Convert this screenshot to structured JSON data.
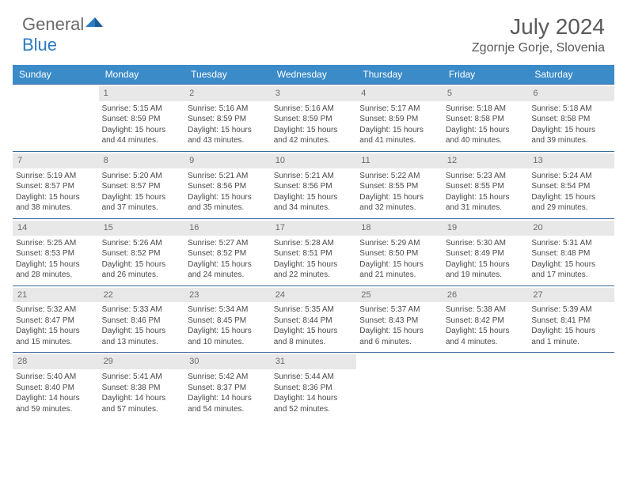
{
  "logo": {
    "text1": "General",
    "text2": "Blue"
  },
  "title": "July 2024",
  "location": "Zgornje Gorje, Slovenia",
  "colors": {
    "header_bg": "#3b8bc9",
    "header_text": "#ffffff",
    "daynum_bg": "#e8e8e8",
    "row_border": "#3b6a9a",
    "text": "#4a4a4a",
    "logo_gray": "#6a6a6a",
    "logo_blue": "#2d7bc0"
  },
  "day_names": [
    "Sunday",
    "Monday",
    "Tuesday",
    "Wednesday",
    "Thursday",
    "Friday",
    "Saturday"
  ],
  "weeks": [
    [
      {
        "n": "",
        "sr": "",
        "ss": "",
        "dl1": "",
        "dl2": ""
      },
      {
        "n": "1",
        "sr": "Sunrise: 5:15 AM",
        "ss": "Sunset: 8:59 PM",
        "dl1": "Daylight: 15 hours",
        "dl2": "and 44 minutes."
      },
      {
        "n": "2",
        "sr": "Sunrise: 5:16 AM",
        "ss": "Sunset: 8:59 PM",
        "dl1": "Daylight: 15 hours",
        "dl2": "and 43 minutes."
      },
      {
        "n": "3",
        "sr": "Sunrise: 5:16 AM",
        "ss": "Sunset: 8:59 PM",
        "dl1": "Daylight: 15 hours",
        "dl2": "and 42 minutes."
      },
      {
        "n": "4",
        "sr": "Sunrise: 5:17 AM",
        "ss": "Sunset: 8:59 PM",
        "dl1": "Daylight: 15 hours",
        "dl2": "and 41 minutes."
      },
      {
        "n": "5",
        "sr": "Sunrise: 5:18 AM",
        "ss": "Sunset: 8:58 PM",
        "dl1": "Daylight: 15 hours",
        "dl2": "and 40 minutes."
      },
      {
        "n": "6",
        "sr": "Sunrise: 5:18 AM",
        "ss": "Sunset: 8:58 PM",
        "dl1": "Daylight: 15 hours",
        "dl2": "and 39 minutes."
      }
    ],
    [
      {
        "n": "7",
        "sr": "Sunrise: 5:19 AM",
        "ss": "Sunset: 8:57 PM",
        "dl1": "Daylight: 15 hours",
        "dl2": "and 38 minutes."
      },
      {
        "n": "8",
        "sr": "Sunrise: 5:20 AM",
        "ss": "Sunset: 8:57 PM",
        "dl1": "Daylight: 15 hours",
        "dl2": "and 37 minutes."
      },
      {
        "n": "9",
        "sr": "Sunrise: 5:21 AM",
        "ss": "Sunset: 8:56 PM",
        "dl1": "Daylight: 15 hours",
        "dl2": "and 35 minutes."
      },
      {
        "n": "10",
        "sr": "Sunrise: 5:21 AM",
        "ss": "Sunset: 8:56 PM",
        "dl1": "Daylight: 15 hours",
        "dl2": "and 34 minutes."
      },
      {
        "n": "11",
        "sr": "Sunrise: 5:22 AM",
        "ss": "Sunset: 8:55 PM",
        "dl1": "Daylight: 15 hours",
        "dl2": "and 32 minutes."
      },
      {
        "n": "12",
        "sr": "Sunrise: 5:23 AM",
        "ss": "Sunset: 8:55 PM",
        "dl1": "Daylight: 15 hours",
        "dl2": "and 31 minutes."
      },
      {
        "n": "13",
        "sr": "Sunrise: 5:24 AM",
        "ss": "Sunset: 8:54 PM",
        "dl1": "Daylight: 15 hours",
        "dl2": "and 29 minutes."
      }
    ],
    [
      {
        "n": "14",
        "sr": "Sunrise: 5:25 AM",
        "ss": "Sunset: 8:53 PM",
        "dl1": "Daylight: 15 hours",
        "dl2": "and 28 minutes."
      },
      {
        "n": "15",
        "sr": "Sunrise: 5:26 AM",
        "ss": "Sunset: 8:52 PM",
        "dl1": "Daylight: 15 hours",
        "dl2": "and 26 minutes."
      },
      {
        "n": "16",
        "sr": "Sunrise: 5:27 AM",
        "ss": "Sunset: 8:52 PM",
        "dl1": "Daylight: 15 hours",
        "dl2": "and 24 minutes."
      },
      {
        "n": "17",
        "sr": "Sunrise: 5:28 AM",
        "ss": "Sunset: 8:51 PM",
        "dl1": "Daylight: 15 hours",
        "dl2": "and 22 minutes."
      },
      {
        "n": "18",
        "sr": "Sunrise: 5:29 AM",
        "ss": "Sunset: 8:50 PM",
        "dl1": "Daylight: 15 hours",
        "dl2": "and 21 minutes."
      },
      {
        "n": "19",
        "sr": "Sunrise: 5:30 AM",
        "ss": "Sunset: 8:49 PM",
        "dl1": "Daylight: 15 hours",
        "dl2": "and 19 minutes."
      },
      {
        "n": "20",
        "sr": "Sunrise: 5:31 AM",
        "ss": "Sunset: 8:48 PM",
        "dl1": "Daylight: 15 hours",
        "dl2": "and 17 minutes."
      }
    ],
    [
      {
        "n": "21",
        "sr": "Sunrise: 5:32 AM",
        "ss": "Sunset: 8:47 PM",
        "dl1": "Daylight: 15 hours",
        "dl2": "and 15 minutes."
      },
      {
        "n": "22",
        "sr": "Sunrise: 5:33 AM",
        "ss": "Sunset: 8:46 PM",
        "dl1": "Daylight: 15 hours",
        "dl2": "and 13 minutes."
      },
      {
        "n": "23",
        "sr": "Sunrise: 5:34 AM",
        "ss": "Sunset: 8:45 PM",
        "dl1": "Daylight: 15 hours",
        "dl2": "and 10 minutes."
      },
      {
        "n": "24",
        "sr": "Sunrise: 5:35 AM",
        "ss": "Sunset: 8:44 PM",
        "dl1": "Daylight: 15 hours",
        "dl2": "and 8 minutes."
      },
      {
        "n": "25",
        "sr": "Sunrise: 5:37 AM",
        "ss": "Sunset: 8:43 PM",
        "dl1": "Daylight: 15 hours",
        "dl2": "and 6 minutes."
      },
      {
        "n": "26",
        "sr": "Sunrise: 5:38 AM",
        "ss": "Sunset: 8:42 PM",
        "dl1": "Daylight: 15 hours",
        "dl2": "and 4 minutes."
      },
      {
        "n": "27",
        "sr": "Sunrise: 5:39 AM",
        "ss": "Sunset: 8:41 PM",
        "dl1": "Daylight: 15 hours",
        "dl2": "and 1 minute."
      }
    ],
    [
      {
        "n": "28",
        "sr": "Sunrise: 5:40 AM",
        "ss": "Sunset: 8:40 PM",
        "dl1": "Daylight: 14 hours",
        "dl2": "and 59 minutes."
      },
      {
        "n": "29",
        "sr": "Sunrise: 5:41 AM",
        "ss": "Sunset: 8:38 PM",
        "dl1": "Daylight: 14 hours",
        "dl2": "and 57 minutes."
      },
      {
        "n": "30",
        "sr": "Sunrise: 5:42 AM",
        "ss": "Sunset: 8:37 PM",
        "dl1": "Daylight: 14 hours",
        "dl2": "and 54 minutes."
      },
      {
        "n": "31",
        "sr": "Sunrise: 5:44 AM",
        "ss": "Sunset: 8:36 PM",
        "dl1": "Daylight: 14 hours",
        "dl2": "and 52 minutes."
      },
      {
        "n": "",
        "sr": "",
        "ss": "",
        "dl1": "",
        "dl2": ""
      },
      {
        "n": "",
        "sr": "",
        "ss": "",
        "dl1": "",
        "dl2": ""
      },
      {
        "n": "",
        "sr": "",
        "ss": "",
        "dl1": "",
        "dl2": ""
      }
    ]
  ]
}
